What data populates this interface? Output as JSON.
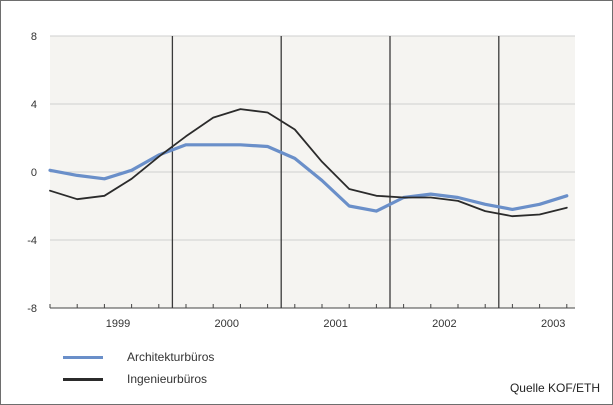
{
  "chart_data": {
    "type": "line",
    "x_unit": "quarter",
    "x": [
      "1998Q4",
      "1999Q1",
      "1999Q2",
      "1999Q3",
      "1999Q4",
      "2000Q1",
      "2000Q2",
      "2000Q3",
      "2000Q4",
      "2001Q1",
      "2001Q2",
      "2001Q3",
      "2001Q4",
      "2002Q1",
      "2002Q2",
      "2002Q3",
      "2002Q4",
      "2003Q1",
      "2003Q2",
      "2003Q3",
      "2003Q4"
    ],
    "year_labels": [
      "1999",
      "2000",
      "2001",
      "2002",
      "2003"
    ],
    "y_ticks": [
      8,
      4,
      0,
      -4,
      -8
    ],
    "ylim": [
      -8,
      8
    ],
    "title": "",
    "xlabel": "",
    "ylabel": "",
    "grid": true,
    "legend_position": "bottom-left",
    "series": [
      {
        "name": "Architekturbüros",
        "color": "#6a8fc9",
        "values": [
          0.1,
          -0.2,
          -0.4,
          0.1,
          1.0,
          1.6,
          1.6,
          1.6,
          1.5,
          0.8,
          -0.5,
          -2.0,
          -2.3,
          -1.5,
          -1.3,
          -1.5,
          -1.9,
          -2.2,
          -1.9,
          -1.4,
          null
        ]
      },
      {
        "name": "Ingenieurbüros",
        "color": "#2b2b2b",
        "values": [
          -1.1,
          -1.6,
          -1.4,
          -0.4,
          0.9,
          2.1,
          3.2,
          3.7,
          3.5,
          2.5,
          0.6,
          -1.0,
          -1.4,
          -1.5,
          -1.5,
          -1.7,
          -2.3,
          -2.6,
          -2.5,
          -2.1,
          null
        ]
      }
    ]
  },
  "source_label": "Quelle KOF/ETH"
}
